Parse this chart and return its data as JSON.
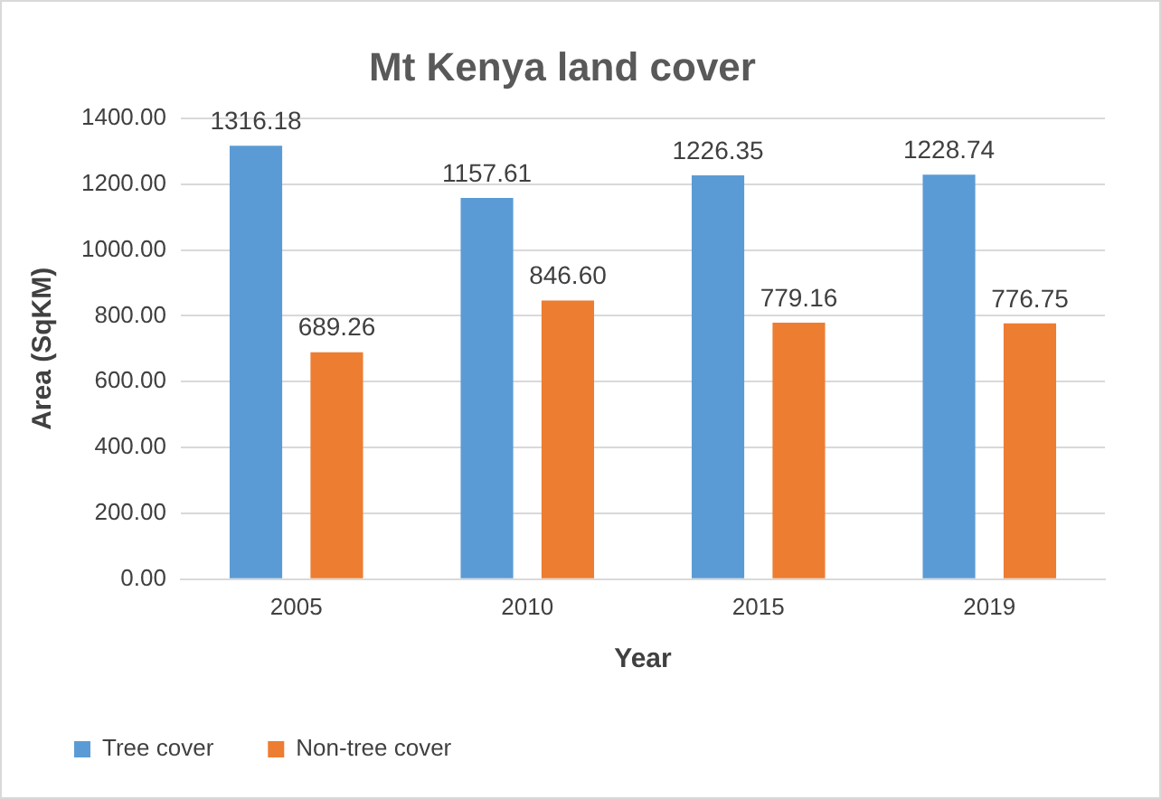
{
  "chart_data": {
    "type": "bar",
    "title": "Mt Kenya land cover",
    "xlabel": "Year",
    "ylabel": "Area (SqKM)",
    "categories": [
      "2005",
      "2010",
      "2015",
      "2019"
    ],
    "series": [
      {
        "name": "Tree cover",
        "color": "#5b9bd5",
        "values": [
          1316.18,
          1157.61,
          1226.35,
          1228.74
        ],
        "value_labels": [
          "1316.18",
          "1157.61",
          "1226.35",
          "1228.74"
        ]
      },
      {
        "name": "Non-tree cover",
        "color": "#ed7d31",
        "values": [
          689.26,
          846.6,
          779.16,
          776.75
        ],
        "value_labels": [
          "689.26",
          "846.60",
          "779.16",
          "776.75"
        ]
      }
    ],
    "ylim": [
      0,
      1400
    ],
    "yticks": [
      {
        "value": 0,
        "label": "0.00"
      },
      {
        "value": 200,
        "label": "200.00"
      },
      {
        "value": 400,
        "label": "400.00"
      },
      {
        "value": 600,
        "label": "600.00"
      },
      {
        "value": 800,
        "label": "800.00"
      },
      {
        "value": 1000,
        "label": "1000.00"
      },
      {
        "value": 1200,
        "label": "1200.00"
      },
      {
        "value": 1400,
        "label": "1400.00"
      }
    ],
    "grid": "y",
    "legend": "bottom left"
  }
}
